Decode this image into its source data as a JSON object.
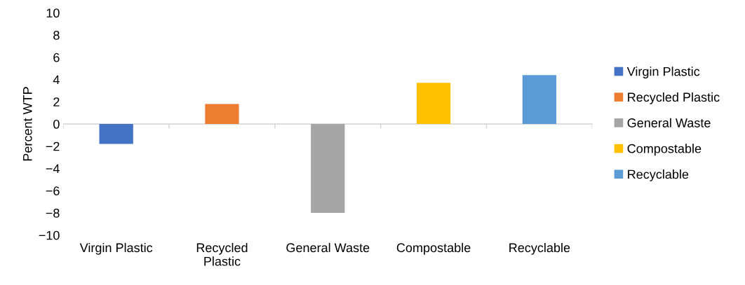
{
  "chart_data": {
    "type": "bar",
    "ylabel": "Percent WTP",
    "categories": [
      "Virgin Plastic",
      "Recycled\nPlastic",
      "General Waste",
      "Compostable",
      "Recyclable"
    ],
    "series": [
      {
        "name": "Virgin Plastic",
        "color": "#4472c4",
        "values": [
          -1.8,
          null,
          null,
          null,
          null
        ]
      },
      {
        "name": "Recycled Plastic",
        "color": "#ed7d31",
        "values": [
          null,
          1.8,
          null,
          null,
          null
        ]
      },
      {
        "name": "General Waste",
        "color": "#a5a5a5",
        "values": [
          null,
          null,
          -8.0,
          null,
          null
        ]
      },
      {
        "name": "Compostable",
        "color": "#ffc000",
        "values": [
          null,
          null,
          null,
          3.7,
          null
        ]
      },
      {
        "name": "Recyclable",
        "color": "#5b9bd5",
        "values": [
          null,
          null,
          null,
          null,
          4.4
        ]
      }
    ],
    "ylim": [
      -10,
      10
    ],
    "yticks": [
      {
        "value": -10,
        "label": "−10"
      },
      {
        "value": -8,
        "label": "−8"
      },
      {
        "value": -6,
        "label": "−6"
      },
      {
        "value": -4,
        "label": "−4"
      },
      {
        "value": -2,
        "label": "−2"
      },
      0,
      2,
      4,
      6,
      8,
      10
    ],
    "legend": "right"
  }
}
